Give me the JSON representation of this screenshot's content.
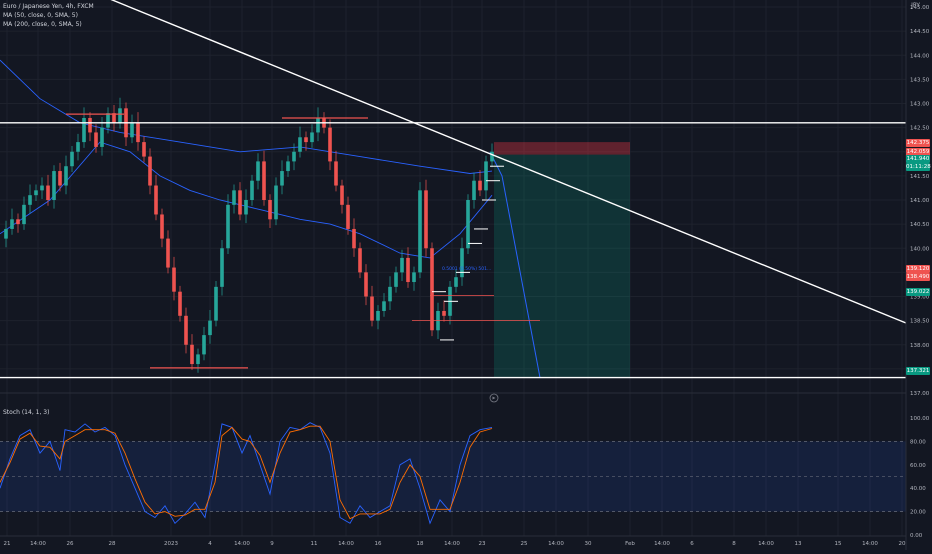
{
  "legend": {
    "symbol": "Euro / Japanese Yen, 4h, FXCM",
    "ma50": "MA (50, close, 0, SMA, 5)",
    "ma200": "MA (200, close, 0, SMA, 5)",
    "stoch": "Stoch (14, 1, 3)"
  },
  "currency": "JPY",
  "price_tags": {
    "t1": "142.375",
    "t2": "142.059",
    "t3": "141.940",
    "t4": "01:11:28",
    "t5": "141.565",
    "t6": "139.120",
    "t7": "138.490",
    "t8": "139.022",
    "t9": "137.321"
  },
  "colors": {
    "background": "#131722",
    "up": "#26a69a",
    "down": "#ef5350",
    "ma": "#2962ff",
    "stoch_k": "#2962ff",
    "stoch_d": "#ff6d00",
    "trendline": "#ffffff"
  },
  "chart_data": [
    {
      "type": "candlestick",
      "title": "Euro / Japanese Yen, 4h, FXCM",
      "y_unit": "JPY",
      "ylim": [
        136.7,
        145.3
      ],
      "y_ticks": [
        "137.00",
        "137.50",
        "138.00",
        "138.50",
        "139.00",
        "139.50",
        "140.00",
        "140.50",
        "141.00",
        "141.50",
        "142.00",
        "142.50",
        "143.00",
        "143.50",
        "144.00",
        "144.50",
        "145.00"
      ],
      "x_ticks": [
        "21",
        "14:00",
        "26",
        "28",
        "2023",
        "4",
        "14:00",
        "9",
        "11",
        "14:00",
        "16",
        "18",
        "14:00",
        "23",
        "25",
        "14:00",
        "30",
        "Feb",
        "14:00",
        "6",
        "8",
        "14:00",
        "13",
        "15",
        "14:00",
        "20"
      ],
      "close_path": [
        [
          0,
          140.2
        ],
        [
          6,
          140.4
        ],
        [
          12,
          140.6
        ],
        [
          18,
          140.5
        ],
        [
          24,
          140.9
        ],
        [
          30,
          141.1
        ],
        [
          36,
          141.2
        ],
        [
          42,
          141.3
        ],
        [
          48,
          141.0
        ],
        [
          54,
          141.6
        ],
        [
          60,
          141.3
        ],
        [
          66,
          141.7
        ],
        [
          72,
          142.0
        ],
        [
          78,
          142.2
        ],
        [
          84,
          142.7
        ],
        [
          90,
          142.4
        ],
        [
          96,
          142.1
        ],
        [
          102,
          142.5
        ],
        [
          108,
          142.8
        ],
        [
          114,
          142.6
        ],
        [
          120,
          142.9
        ],
        [
          126,
          142.3
        ],
        [
          132,
          142.6
        ],
        [
          138,
          142.2
        ],
        [
          144,
          141.9
        ],
        [
          150,
          141.3
        ],
        [
          156,
          140.7
        ],
        [
          162,
          140.2
        ],
        [
          168,
          139.6
        ],
        [
          174,
          139.1
        ],
        [
          180,
          138.6
        ],
        [
          186,
          138.0
        ],
        [
          192,
          137.6
        ],
        [
          198,
          137.8
        ],
        [
          204,
          138.2
        ],
        [
          210,
          138.5
        ],
        [
          216,
          139.2
        ],
        [
          222,
          140.0
        ],
        [
          228,
          140.9
        ],
        [
          234,
          141.2
        ],
        [
          240,
          140.7
        ],
        [
          246,
          141.0
        ],
        [
          252,
          141.4
        ],
        [
          258,
          141.8
        ],
        [
          264,
          141.0
        ],
        [
          270,
          140.6
        ],
        [
          276,
          141.3
        ],
        [
          282,
          141.6
        ],
        [
          288,
          141.8
        ],
        [
          294,
          142.0
        ],
        [
          300,
          142.3
        ],
        [
          306,
          142.2
        ],
        [
          312,
          142.4
        ],
        [
          318,
          142.7
        ],
        [
          324,
          142.5
        ],
        [
          330,
          141.8
        ],
        [
          336,
          141.3
        ],
        [
          342,
          140.9
        ],
        [
          348,
          140.4
        ],
        [
          354,
          140.0
        ],
        [
          360,
          139.5
        ],
        [
          366,
          139.0
        ],
        [
          372,
          138.5
        ],
        [
          378,
          138.7
        ],
        [
          384,
          138.9
        ],
        [
          390,
          139.2
        ],
        [
          396,
          139.5
        ],
        [
          402,
          139.8
        ],
        [
          408,
          139.3
        ],
        [
          414,
          139.5
        ],
        [
          420,
          141.2
        ],
        [
          426,
          140.0
        ],
        [
          432,
          138.3
        ],
        [
          438,
          138.7
        ],
        [
          444,
          138.6
        ],
        [
          450,
          139.2
        ],
        [
          456,
          139.4
        ],
        [
          462,
          140.0
        ],
        [
          468,
          141.0
        ],
        [
          474,
          141.4
        ],
        [
          480,
          141.2
        ],
        [
          486,
          141.8
        ],
        [
          492,
          142.0
        ]
      ],
      "ma50_path": [
        [
          0,
          140.3
        ],
        [
          50,
          141.0
        ],
        [
          100,
          142.2
        ],
        [
          130,
          142.0
        ],
        [
          160,
          141.5
        ],
        [
          190,
          141.2
        ],
        [
          220,
          141.0
        ],
        [
          260,
          140.8
        ],
        [
          300,
          140.6
        ],
        [
          330,
          140.5
        ],
        [
          360,
          140.3
        ],
        [
          400,
          139.9
        ],
        [
          430,
          139.8
        ],
        [
          460,
          140.3
        ],
        [
          492,
          141.1
        ]
      ],
      "ma200_path": [
        [
          0,
          143.9
        ],
        [
          40,
          143.1
        ],
        [
          80,
          142.6
        ],
        [
          120,
          142.4
        ],
        [
          180,
          142.2
        ],
        [
          240,
          142.0
        ],
        [
          300,
          142.1
        ],
        [
          360,
          141.9
        ],
        [
          420,
          141.7
        ],
        [
          470,
          141.55
        ],
        [
          492,
          141.6
        ]
      ],
      "trendline_descending": [
        [
          94,
          145.3
        ],
        [
          906,
          138.45
        ]
      ],
      "horizontal_levels": [
        142.6,
        137.32
      ],
      "resistance_marks": [
        {
          "x1": 66,
          "x2": 124,
          "price": 142.78
        },
        {
          "x1": 282,
          "x2": 368,
          "price": 142.7
        }
      ],
      "support_marks": [
        {
          "x1": 150,
          "x2": 248,
          "price": 137.52
        }
      ],
      "short_position": {
        "x1": 494,
        "x2": 630,
        "entry": 141.94,
        "stop": 142.2,
        "target": 137.32,
        "projection": [
          [
            490,
            142.0
          ],
          [
            502,
            141.5
          ],
          [
            540,
            137.32
          ]
        ]
      },
      "annotation": "0.5001 (0.50%) 501..."
    },
    {
      "type": "line",
      "title": "Stoch (14, 1, 3)",
      "ylim": [
        0,
        110
      ],
      "y_ticks": [
        "0.00",
        "20.00",
        "40.00",
        "60.00",
        "80.00",
        "100.00"
      ],
      "band": [
        20,
        80
      ],
      "series": [
        {
          "name": "%K",
          "values": [
            [
              0,
              40
            ],
            [
              10,
              65
            ],
            [
              20,
              85
            ],
            [
              30,
              90
            ],
            [
              40,
              70
            ],
            [
              50,
              80
            ],
            [
              60,
              55
            ],
            [
              65,
              90
            ],
            [
              75,
              88
            ],
            [
              85,
              95
            ],
            [
              95,
              88
            ],
            [
              105,
              92
            ],
            [
              115,
              85
            ],
            [
              125,
              60
            ],
            [
              135,
              40
            ],
            [
              145,
              20
            ],
            [
              155,
              15
            ],
            [
              165,
              25
            ],
            [
              175,
              10
            ],
            [
              185,
              18
            ],
            [
              195,
              28
            ],
            [
              205,
              15
            ],
            [
              215,
              60
            ],
            [
              222,
              95
            ],
            [
              232,
              92
            ],
            [
              242,
              70
            ],
            [
              250,
              85
            ],
            [
              260,
              60
            ],
            [
              270,
              35
            ],
            [
              280,
              80
            ],
            [
              290,
              92
            ],
            [
              300,
              90
            ],
            [
              310,
              96
            ],
            [
              320,
              92
            ],
            [
              330,
              70
            ],
            [
              340,
              15
            ],
            [
              350,
              10
            ],
            [
              360,
              25
            ],
            [
              370,
              15
            ],
            [
              380,
              20
            ],
            [
              390,
              25
            ],
            [
              400,
              60
            ],
            [
              410,
              65
            ],
            [
              420,
              40
            ],
            [
              430,
              10
            ],
            [
              440,
              30
            ],
            [
              450,
              20
            ],
            [
              460,
              60
            ],
            [
              470,
              85
            ],
            [
              480,
              90
            ],
            [
              492,
              92
            ]
          ]
        },
        {
          "name": "%D",
          "values": [
            [
              0,
              45
            ],
            [
              10,
              62
            ],
            [
              20,
              82
            ],
            [
              30,
              87
            ],
            [
              40,
              76
            ],
            [
              50,
              75
            ],
            [
              60,
              65
            ],
            [
              65,
              80
            ],
            [
              75,
              85
            ],
            [
              85,
              90
            ],
            [
              95,
              90
            ],
            [
              105,
              90
            ],
            [
              115,
              87
            ],
            [
              125,
              70
            ],
            [
              135,
              48
            ],
            [
              145,
              28
            ],
            [
              155,
              18
            ],
            [
              165,
              20
            ],
            [
              175,
              16
            ],
            [
              185,
              17
            ],
            [
              195,
              22
            ],
            [
              205,
              22
            ],
            [
              215,
              45
            ],
            [
              222,
              85
            ],
            [
              232,
              92
            ],
            [
              242,
              82
            ],
            [
              250,
              80
            ],
            [
              260,
              68
            ],
            [
              270,
              45
            ],
            [
              280,
              70
            ],
            [
              290,
              88
            ],
            [
              300,
              90
            ],
            [
              310,
              93
            ],
            [
              320,
              93
            ],
            [
              330,
              80
            ],
            [
              340,
              30
            ],
            [
              350,
              14
            ],
            [
              360,
              18
            ],
            [
              370,
              18
            ],
            [
              380,
              18
            ],
            [
              390,
              22
            ],
            [
              400,
              45
            ],
            [
              410,
              60
            ],
            [
              420,
              50
            ],
            [
              430,
              22
            ],
            [
              440,
              22
            ],
            [
              450,
              22
            ],
            [
              460,
              45
            ],
            [
              470,
              75
            ],
            [
              480,
              88
            ],
            [
              492,
              91
            ]
          ]
        }
      ]
    }
  ]
}
